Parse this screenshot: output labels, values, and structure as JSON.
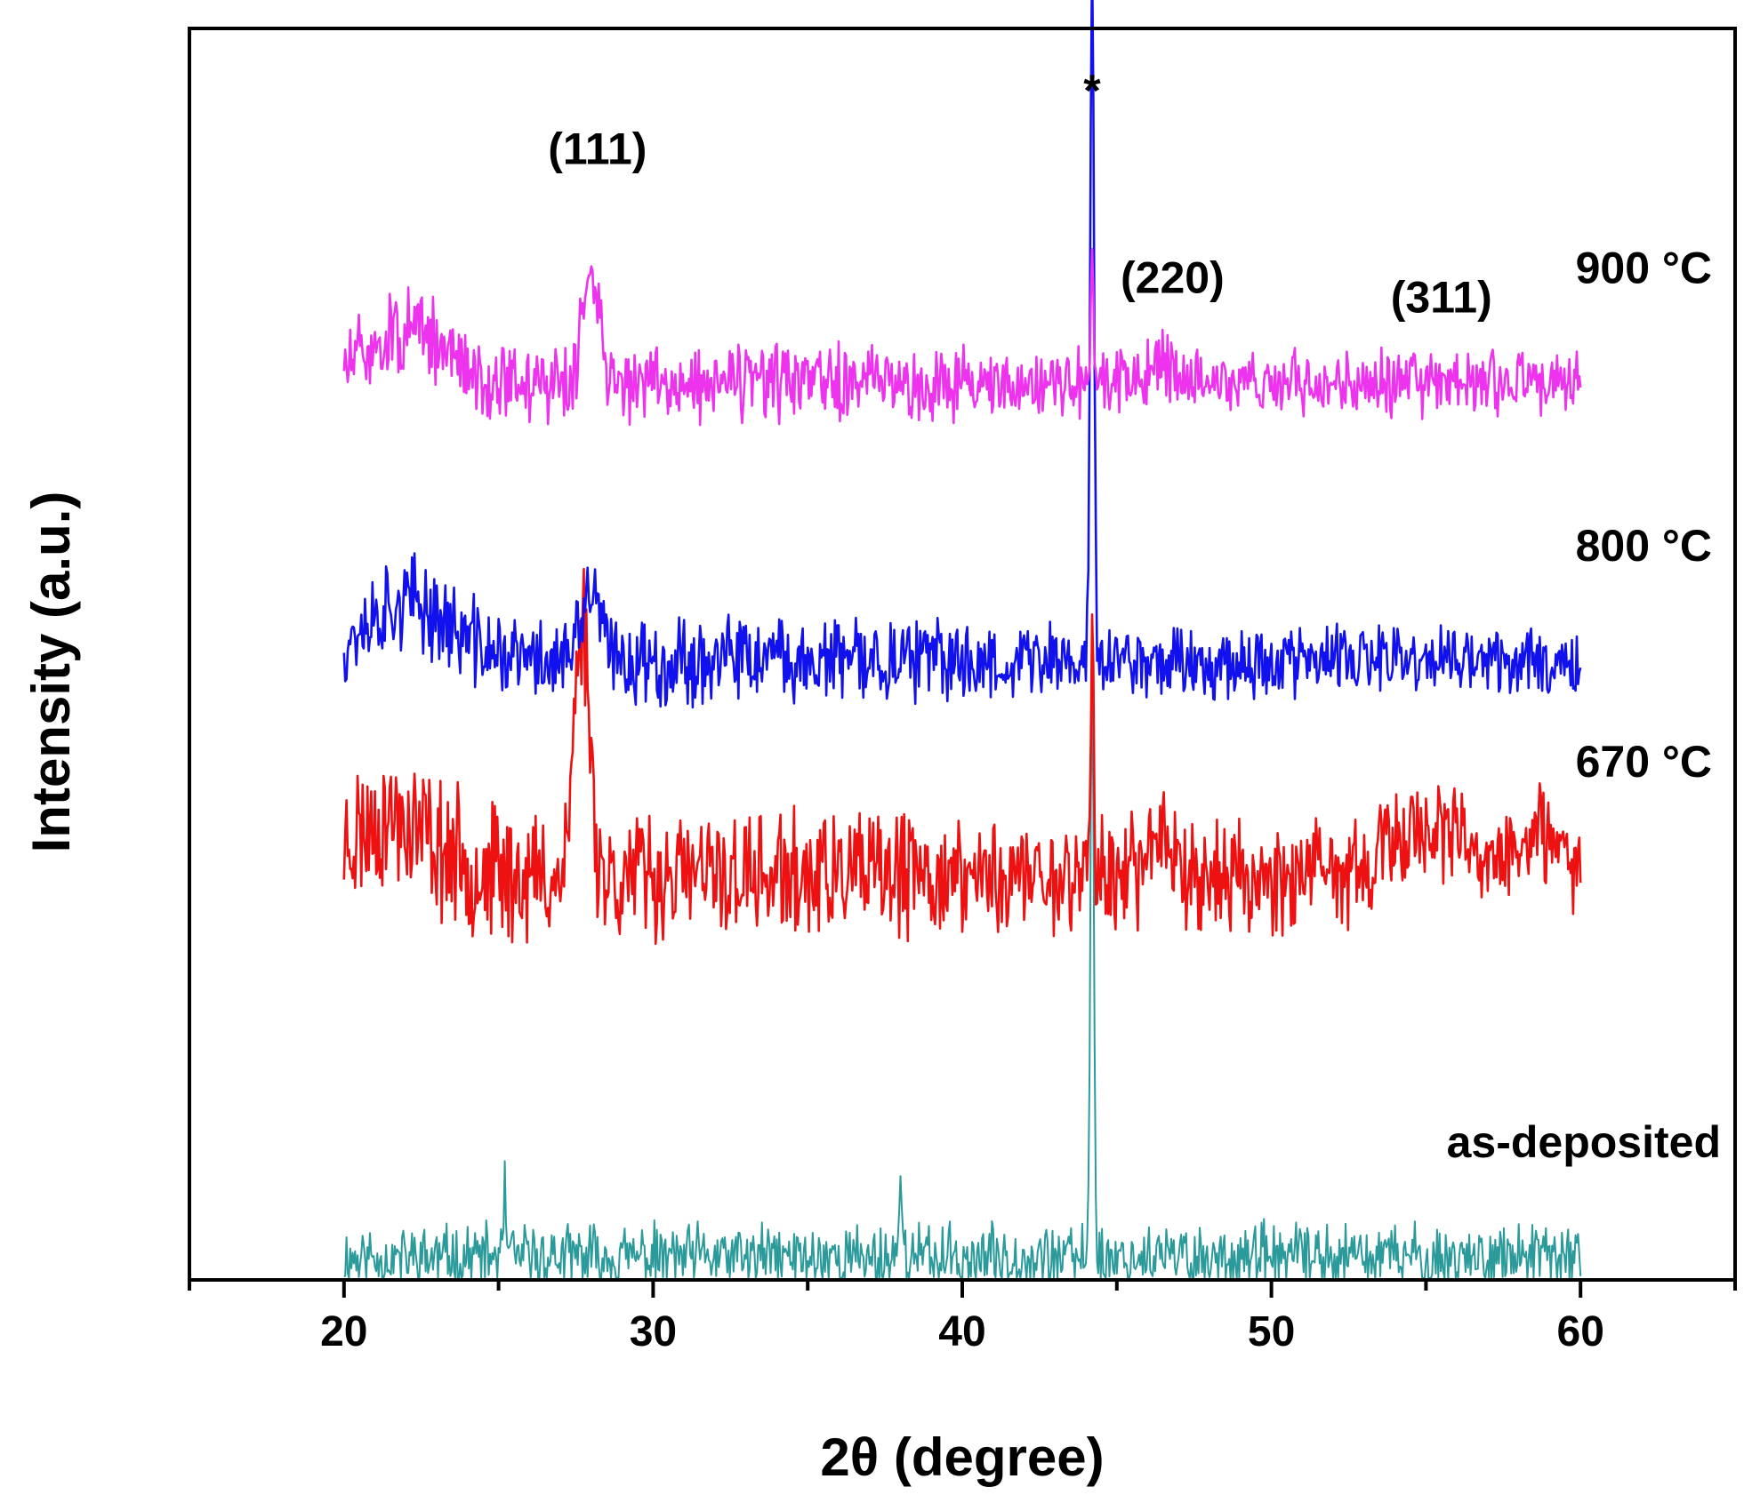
{
  "chart_data": {
    "type": "line",
    "title": "",
    "xlabel": "2θ (degree)",
    "ylabel": "Intensity (a.u.)",
    "xlim": [
      15,
      65
    ],
    "x_ticks": [
      20,
      30,
      40,
      50,
      60
    ],
    "x_tick_labels": [
      "20",
      "30",
      "40",
      "50",
      "60"
    ],
    "y_ticks_shown": false,
    "series_step": 1,
    "series": [
      {
        "name": "as-deposited",
        "label": "as-deposited",
        "color": "#2a9a9a",
        "baseline": 0.35,
        "noise": 0.8,
        "seed": 11,
        "stroke": 2,
        "peaks": [
          {
            "x": 44.2,
            "h": 9.0,
            "w": 0.08
          },
          {
            "x": 38.0,
            "h": 1.8,
            "w": 0.05
          },
          {
            "x": 25.2,
            "h": 1.2,
            "w": 0.05
          }
        ],
        "humps": []
      },
      {
        "name": "670 °C",
        "label": "670 °C",
        "color": "#ee1111",
        "baseline": 6.25,
        "noise": 1.5,
        "seed": 23,
        "stroke": 2.6,
        "peaks": [
          {
            "x": 27.7,
            "h": 4.0,
            "w": 0.35
          },
          {
            "x": 44.2,
            "h": 3.6,
            "w": 0.08
          }
        ],
        "humps": [
          {
            "x": 21.5,
            "h": 0.9,
            "w": 2.0
          },
          {
            "x": 46.5,
            "h": 0.7,
            "w": 0.6
          },
          {
            "x": 55.0,
            "h": 0.8,
            "w": 1.5
          },
          {
            "x": 58.5,
            "h": 0.6,
            "w": 1.2
          }
        ]
      },
      {
        "name": "800 °C",
        "label": "800 °C",
        "color": "#1111ee",
        "baseline": 9.6,
        "noise": 1.0,
        "seed": 37,
        "stroke": 2.6,
        "peaks": [
          {
            "x": 28.0,
            "h": 1.1,
            "w": 0.4
          },
          {
            "x": 44.2,
            "h": 10.5,
            "w": 0.09
          }
        ],
        "humps": [
          {
            "x": 22.0,
            "h": 0.9,
            "w": 2.0
          }
        ]
      },
      {
        "name": "900 °C",
        "label": "900 °C",
        "color": "#ee33ee",
        "baseline": 13.9,
        "noise": 0.9,
        "seed": 51,
        "stroke": 2.6,
        "peaks": [
          {
            "x": 28.0,
            "h": 1.9,
            "w": 0.35
          },
          {
            "x": 44.2,
            "h": 2.4,
            "w": 0.06
          }
        ],
        "humps": [
          {
            "x": 22.0,
            "h": 0.8,
            "w": 1.8
          },
          {
            "x": 46.5,
            "h": 0.3,
            "w": 0.7
          }
        ]
      }
    ],
    "ylim": [
      0,
      19.4
    ],
    "annotations": [
      {
        "text": "(111)",
        "x": 28.2,
        "y": 17.3
      },
      {
        "text": "*",
        "x": 44.2,
        "y": 18.2
      },
      {
        "text": "(220)",
        "x": 46.8,
        "y": 15.3
      },
      {
        "text": "(311)",
        "x": 55.5,
        "y": 15.0
      }
    ]
  }
}
